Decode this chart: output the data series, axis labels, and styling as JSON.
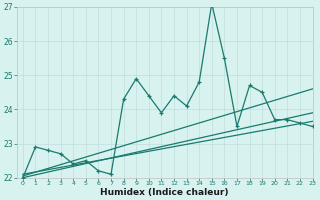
{
  "title": "",
  "xlabel": "Humidex (Indice chaleur)",
  "ylabel": "",
  "x_data": [
    0,
    1,
    2,
    3,
    4,
    5,
    6,
    7,
    8,
    9,
    10,
    11,
    12,
    13,
    14,
    15,
    16,
    17,
    18,
    19,
    20,
    21,
    22,
    23
  ],
  "y_data": [
    22.0,
    22.9,
    22.8,
    22.7,
    22.4,
    22.5,
    22.2,
    22.1,
    24.3,
    24.9,
    24.4,
    23.9,
    24.4,
    24.1,
    24.8,
    27.1,
    25.5,
    23.5,
    24.7,
    24.5,
    23.7,
    23.7,
    23.6,
    23.5
  ],
  "trend1_x": [
    0,
    23
  ],
  "trend1_y": [
    22.05,
    24.6
  ],
  "trend2_x": [
    0,
    23
  ],
  "trend2_y": [
    22.0,
    23.9
  ],
  "trend3_x": [
    0,
    23
  ],
  "trend3_y": [
    22.1,
    23.65
  ],
  "ylim": [
    22,
    27
  ],
  "xlim": [
    -0.5,
    23
  ],
  "yticks": [
    22,
    23,
    24,
    25,
    26,
    27
  ],
  "xticks": [
    0,
    1,
    2,
    3,
    4,
    5,
    6,
    7,
    8,
    9,
    10,
    11,
    12,
    13,
    14,
    15,
    16,
    17,
    18,
    19,
    20,
    21,
    22,
    23
  ],
  "line_color": "#1a7a6e",
  "bg_color": "#d8f2f0",
  "grid_color": "#c0dede",
  "fig_bg": "#d8f2f0",
  "spine_color": "#c0c0c0",
  "tick_color": "#1a7a6e",
  "label_color": "#1a1a1a"
}
